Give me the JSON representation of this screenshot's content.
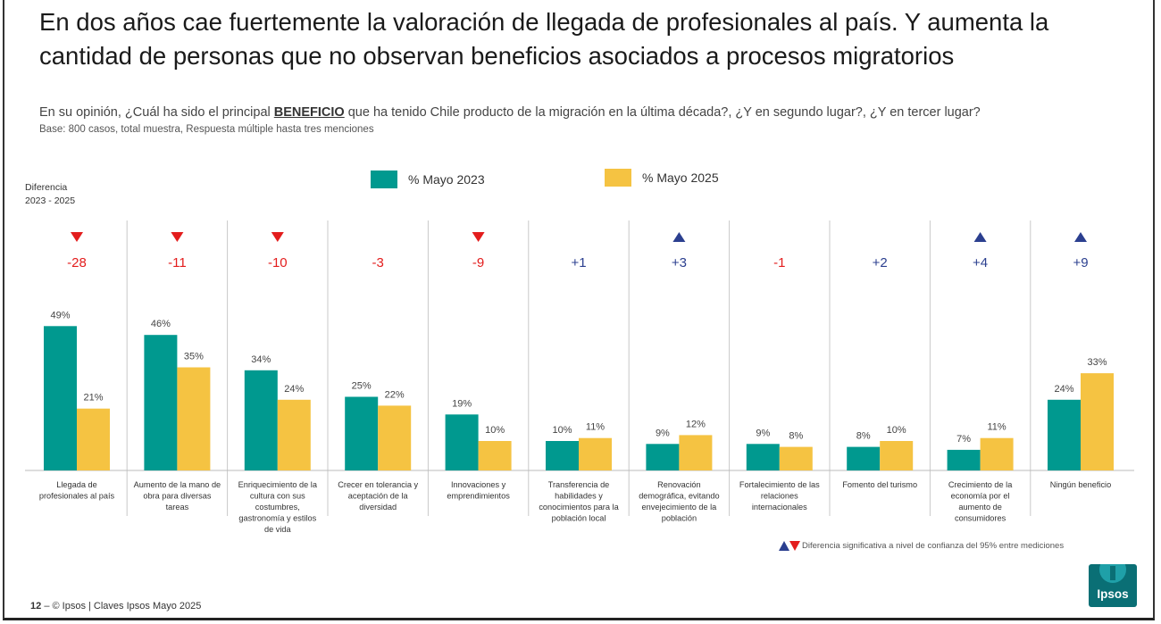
{
  "title": "En dos años cae fuertemente la valoración de llegada de profesionales al país. Y aumenta la cantidad de personas que no observan beneficios asociados a procesos migratorios",
  "question": {
    "before": "En su opinión, ¿Cuál ha sido el principal ",
    "emphasis": "BENEFICIO",
    "after": " que ha tenido Chile producto de la migración en la última década?, ¿Y en segundo lugar?, ¿Y en tercer lugar?"
  },
  "base": "Base: 800 casos, total muestra, Respuesta múltiple hasta tres menciones",
  "diff_label": [
    "Diferencia",
    "2023 - 2025"
  ],
  "significance_note": "Diferencia significativa a nivel de confianza del 95% entre mediciones",
  "footer": {
    "page": "12",
    "dash": "–",
    "text": "© Ipsos | Claves Ipsos Mayo 2025"
  },
  "logo": {
    "text": "Ipsos"
  },
  "colors": {
    "series_2023": "#00998f",
    "series_2025": "#f5c342",
    "down": "#e31d1d",
    "up": "#2b3f8f",
    "divider": "#c9c9c9"
  },
  "chart_data": {
    "type": "bar",
    "categories": [
      [
        "Llegada de",
        "profesionales al país"
      ],
      [
        "Aumento de la mano de",
        "obra para diversas",
        "tareas"
      ],
      [
        "Enriquecimiento de la",
        "cultura con sus",
        "costumbres,",
        "gastronomía y estilos",
        "de vida"
      ],
      [
        "Crecer en tolerancia y",
        "aceptación de la",
        "diversidad"
      ],
      [
        "Innovaciones y",
        "emprendimientos"
      ],
      [
        "Transferencia de",
        "habilidades y",
        "conocimientos para la",
        "población local"
      ],
      [
        "Renovación",
        "demográfica, evitando",
        "envejecimiento de la",
        "población"
      ],
      [
        "Fortalecimiento de las",
        "relaciones",
        "internacionales"
      ],
      [
        "Fomento del turismo"
      ],
      [
        "Crecimiento de la",
        "economía por el",
        "aumento de",
        "consumidores"
      ],
      [
        "Ningún beneficio"
      ]
    ],
    "series": [
      {
        "name": "% Mayo 2023",
        "values": [
          49,
          46,
          34,
          25,
          19,
          10,
          9,
          9,
          8,
          7,
          24
        ]
      },
      {
        "name": "% Mayo 2025",
        "values": [
          21,
          35,
          24,
          22,
          10,
          11,
          12,
          8,
          10,
          11,
          33
        ]
      }
    ],
    "value_suffix": "%",
    "differences": [
      "-28",
      "-11",
      "-10",
      "-3",
      "-9",
      "+1",
      "+3",
      "-1",
      "+2",
      "+4",
      "+9"
    ],
    "significance": [
      "down",
      "down",
      "down",
      "none",
      "down",
      "none",
      "up",
      "none",
      "none",
      "up",
      "up"
    ],
    "ylim": [
      0,
      60
    ],
    "legend_position": "top-center"
  }
}
